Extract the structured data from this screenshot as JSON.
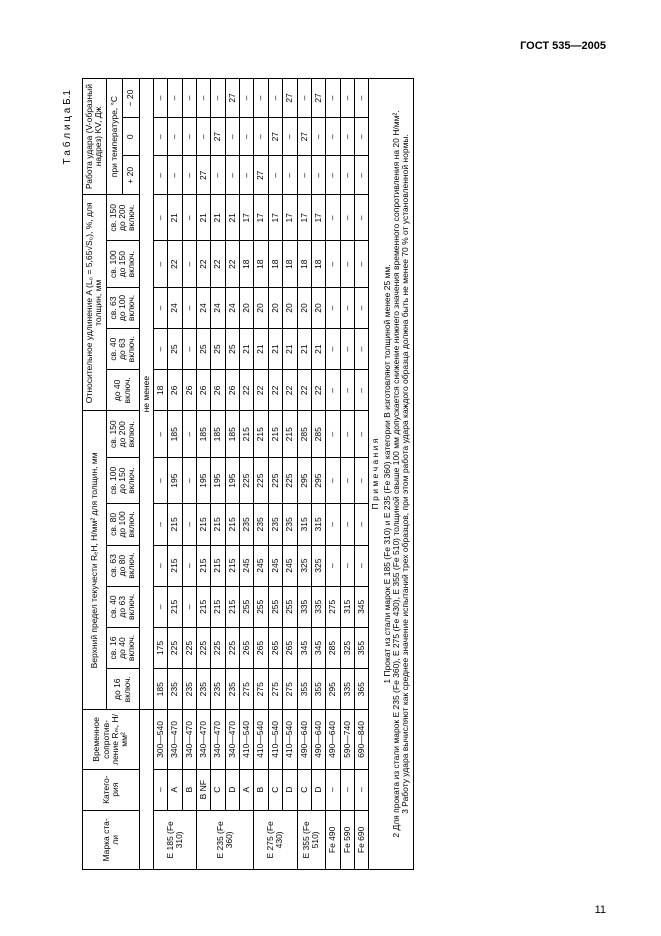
{
  "doc_title": "ГОСТ 535—2005",
  "table_caption": "Т а б л и ц а  Б.1",
  "page_number": "11",
  "headers": {
    "steel_grade": "Марка ста-\nли",
    "category": "Катего-\nрия",
    "tensile": "Временное\nсопротив-\nление Rₘ,\nН/мм²",
    "yield_group": "Верхний предел текучести RₑH, Н/мм² для толщин, мм",
    "yield_cols": [
      "до 16\nвключ.",
      "св. 16\nдо 40\nвключ.",
      "св. 40\nдо 63\nвключ.",
      "св. 63\nдо 80\nвключ.",
      "св. 80\nдо 100\nвключ.",
      "св. 100\nдо 150\nвключ.",
      "св. 150\nдо 200\nвключ."
    ],
    "elong_group": "Относительное удлинение A (L₀ = 5,65√S₀), %,\nдля толщин, мм",
    "elong_cols": [
      "до 40\nвключ.",
      "св. 40\nдо 63\nвключ.",
      "св. 63\nдо 100\nвключ.",
      "св. 100\nдо 150\nвключ.",
      "св. 150\nдо 200\nвключ."
    ],
    "impact_group": "Работа удара (V-образный\nнадрез) KV, Дж",
    "impact_sub": "при температуре, °C",
    "impact_cols": [
      "+ 20",
      "0",
      "− 20"
    ],
    "not_less": "не менее"
  },
  "rows": [
    {
      "grade": "E 185\n(Fe 310)",
      "cat": "–",
      "tens": "300—540",
      "y": [
        "185",
        "175",
        "–",
        "–",
        "–",
        "–",
        "–"
      ],
      "e": [
        "18",
        "–",
        "–",
        "–",
        "–"
      ],
      "kv": [
        "–",
        "–",
        "–"
      ]
    },
    {
      "grade": "",
      "cat": "A",
      "tens": "340—470",
      "y": [
        "235",
        "225",
        "215",
        "215",
        "215",
        "195",
        "185"
      ],
      "e": [
        "26",
        "25",
        "24",
        "22",
        "21"
      ],
      "kv": [
        "–",
        "–",
        "–"
      ]
    },
    {
      "grade": "",
      "cat": "B",
      "tens": "340—470",
      "y": [
        "235",
        "225",
        "–",
        "–",
        "–",
        "–",
        "–"
      ],
      "e": [
        "26",
        "–",
        "–",
        "–",
        "–"
      ],
      "kv": [
        "–",
        "–",
        "–"
      ]
    },
    {
      "grade": "E 235\n(Fe 360)",
      "cat": "B NF",
      "tens": "340—470",
      "y": [
        "235",
        "225",
        "215",
        "215",
        "215",
        "195",
        "185"
      ],
      "e": [
        "26",
        "25",
        "24",
        "22",
        "21"
      ],
      "kv": [
        "27",
        "–",
        "–"
      ]
    },
    {
      "grade": "",
      "cat": "C",
      "tens": "340—470",
      "y": [
        "235",
        "225",
        "215",
        "215",
        "215",
        "195",
        "185"
      ],
      "e": [
        "26",
        "25",
        "24",
        "22",
        "21"
      ],
      "kv": [
        "–",
        "27",
        "–"
      ]
    },
    {
      "grade": "",
      "cat": "D",
      "tens": "340—470",
      "y": [
        "235",
        "225",
        "215",
        "215",
        "215",
        "195",
        "185"
      ],
      "e": [
        "26",
        "25",
        "24",
        "22",
        "21"
      ],
      "kv": [
        "–",
        "–",
        "27"
      ]
    },
    {
      "grade": "",
      "cat": "A",
      "tens": "410—540",
      "y": [
        "275",
        "265",
        "255",
        "245",
        "235",
        "225",
        "215"
      ],
      "e": [
        "22",
        "21",
        "20",
        "18",
        "17"
      ],
      "kv": [
        "–",
        "–",
        "–"
      ]
    },
    {
      "grade": "E 275\n(Fe 430)",
      "cat": "B",
      "tens": "410—540",
      "y": [
        "275",
        "265",
        "255",
        "245",
        "235",
        "225",
        "215"
      ],
      "e": [
        "22",
        "21",
        "20",
        "18",
        "17"
      ],
      "kv": [
        "27",
        "–",
        "–"
      ]
    },
    {
      "grade": "",
      "cat": "C",
      "tens": "410—540",
      "y": [
        "275",
        "265",
        "255",
        "245",
        "235",
        "225",
        "215"
      ],
      "e": [
        "22",
        "21",
        "20",
        "18",
        "17"
      ],
      "kv": [
        "–",
        "27",
        "–"
      ]
    },
    {
      "grade": "",
      "cat": "D",
      "tens": "410—540",
      "y": [
        "275",
        "265",
        "255",
        "245",
        "235",
        "225",
        "215"
      ],
      "e": [
        "22",
        "21",
        "20",
        "18",
        "17"
      ],
      "kv": [
        "–",
        "–",
        "27"
      ]
    },
    {
      "grade": "E 355\n(Fe 510)",
      "cat": "C",
      "tens": "490—640",
      "y": [
        "355",
        "345",
        "335",
        "325",
        "315",
        "295",
        "285"
      ],
      "e": [
        "22",
        "21",
        "20",
        "18",
        "17"
      ],
      "kv": [
        "–",
        "27",
        "–"
      ]
    },
    {
      "grade": "",
      "cat": "D",
      "tens": "490—640",
      "y": [
        "355",
        "345",
        "335",
        "325",
        "315",
        "295",
        "285"
      ],
      "e": [
        "22",
        "21",
        "20",
        "18",
        "17"
      ],
      "kv": [
        "–",
        "–",
        "27"
      ]
    },
    {
      "grade": "Fe 490",
      "cat": "–",
      "tens": "490—640",
      "y": [
        "295",
        "285",
        "275",
        "–",
        "–",
        "–",
        "–"
      ],
      "e": [
        "–",
        "–",
        "–",
        "–",
        "–"
      ],
      "kv": [
        "–",
        "–",
        "–"
      ]
    },
    {
      "grade": "Fe 590",
      "cat": "–",
      "tens": "590—740",
      "y": [
        "335",
        "325",
        "315",
        "–",
        "–",
        "–",
        "–"
      ],
      "e": [
        "–",
        "–",
        "–",
        "–",
        "–"
      ],
      "kv": [
        "–",
        "–",
        "–"
      ]
    },
    {
      "grade": "Fe 690",
      "cat": "–",
      "tens": "690—840",
      "y": [
        "365",
        "355",
        "345",
        "–",
        "–",
        "–",
        "–"
      ],
      "e": [
        "–",
        "–",
        "–",
        "–",
        "–"
      ],
      "kv": [
        "–",
        "–",
        "–"
      ]
    }
  ],
  "notes_title": "П р и м е ч а н и я",
  "notes": [
    "1  Прокат из стали марок Е 185 (Fe 310) и Е 235 (Fe 360) категории В изготовляют толщиной менее 25 мм.",
    "2  Для проката из стали марок Е 235 (Fe 360), Е 275 (Fe 430), Е 355 (Fe 510) толщиной свыше 100 мм допускается снижение нижнего значения временного сопротивления на 20 Н/мм².",
    "3  Работу удара вычисляют как среднее значение испытаний трех образцов, при этом работа удара каждого образца должна быть не менее 70 % от уста­новленной нормы."
  ]
}
